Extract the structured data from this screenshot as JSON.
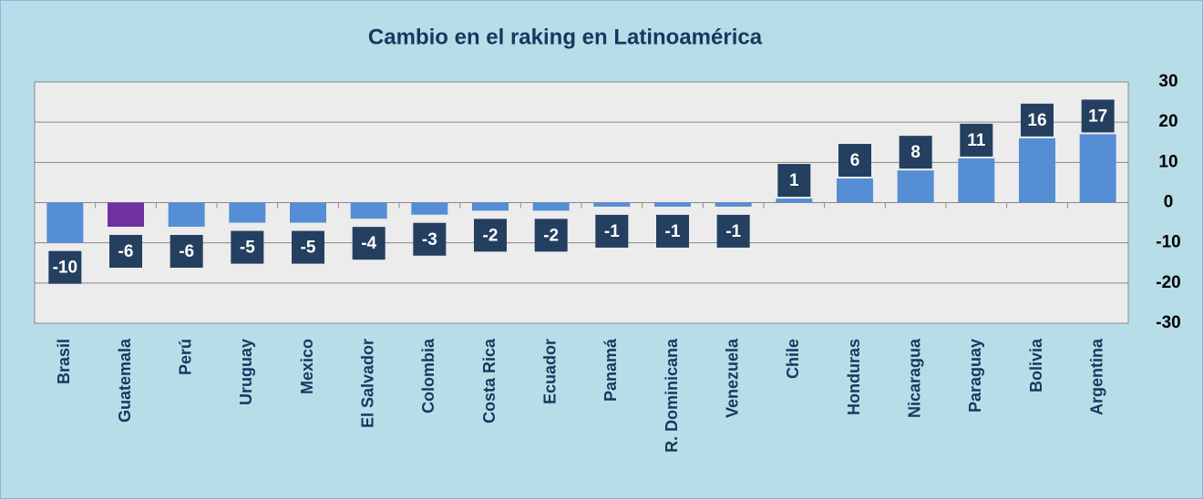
{
  "chart_data": {
    "type": "bar",
    "title": "Cambio en el raking en Latinoamérica",
    "categories": [
      "Brasil",
      "Guatemala",
      "Perú",
      "Uruguay",
      "Mexico",
      "El Salvador",
      "Colombia",
      "Costa Rica",
      "Ecuador",
      "Panamá",
      "R. Dominicana",
      "Venezuela",
      "Chile",
      "Honduras",
      "Nicaragua",
      "Paraguay",
      "Bolivia",
      "Argentina"
    ],
    "values": [
      -10,
      -6,
      -6,
      -5,
      -5,
      -4,
      -3,
      -2,
      -2,
      -1,
      -1,
      -1,
      1,
      6,
      8,
      11,
      16,
      17
    ],
    "colors": [
      "#558ed5",
      "#7030a0",
      "#558ed5",
      "#558ed5",
      "#558ed5",
      "#558ed5",
      "#558ed5",
      "#558ed5",
      "#558ed5",
      "#558ed5",
      "#558ed5",
      "#558ed5",
      "#558ed5",
      "#558ed5",
      "#558ed5",
      "#558ed5",
      "#558ed5",
      "#558ed5"
    ],
    "ylim": [
      -30,
      30
    ],
    "yticks": [
      -30,
      -20,
      -10,
      0,
      10,
      20,
      30
    ],
    "grid": true
  }
}
